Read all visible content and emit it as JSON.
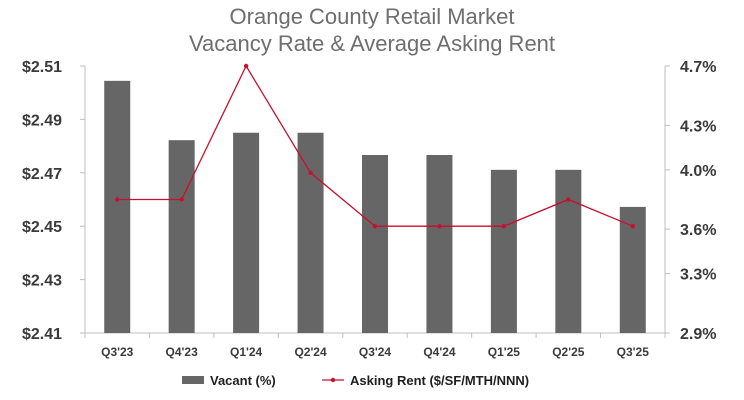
{
  "title_line1": "Orange County Retail Market",
  "title_line2": "Vacancy Rate & Average Asking Rent",
  "chart_data": {
    "type": "bar",
    "categories": [
      "Q3'23",
      "Q4'23",
      "Q1'24",
      "Q2'24",
      "Q3'24",
      "Q4'24",
      "Q1'25",
      "Q2'25",
      "Q3'25"
    ],
    "series": [
      {
        "name": "Vacant (%)",
        "type": "bar",
        "axis": "right",
        "values": [
          4.6,
          4.2,
          4.25,
          4.25,
          4.1,
          4.1,
          4.0,
          4.0,
          3.75
        ]
      },
      {
        "name": "Asking Rent ($/SF/MTH/NNN)",
        "type": "line",
        "axis": "left",
        "values": [
          2.46,
          2.46,
          2.51,
          2.47,
          2.45,
          2.45,
          2.45,
          2.46,
          2.45
        ]
      }
    ],
    "y_left": {
      "range": [
        2.41,
        2.51
      ],
      "ticks": [
        2.41,
        2.43,
        2.45,
        2.47,
        2.49,
        2.51
      ],
      "tick_labels": [
        "$2.41",
        "$2.43",
        "$2.45",
        "$2.47",
        "$2.49",
        "$2.51"
      ]
    },
    "y_right": {
      "range": [
        2.9,
        4.7
      ],
      "ticks": [
        2.9,
        3.3,
        3.6,
        4.0,
        4.3,
        4.7
      ],
      "tick_labels": [
        "2.9%",
        "3.3%",
        "3.6%",
        "4.0%",
        "4.3%",
        "4.7%"
      ]
    },
    "grid": false,
    "legend_position": "bottom",
    "colors": {
      "bar": "#666666",
      "line": "#c8102e",
      "axis": "#bfbfbf",
      "title": "#6e6e6e"
    }
  }
}
